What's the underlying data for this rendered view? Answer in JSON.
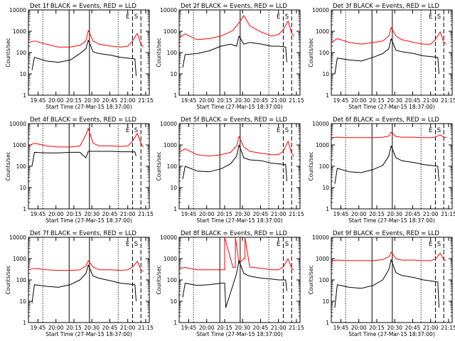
{
  "figure": {
    "ylabel": "Counts/sec",
    "xlabel": "Start Time (27-Mar-15 18:37:00)",
    "x_ticks": [
      "19:45",
      "20:00",
      "20:15",
      "20:30",
      "20:45",
      "21:00",
      "21:15"
    ],
    "x_ticks_row1": [
      "19:45",
      "20:00",
      "20:15",
      "20:30",
      "20:45",
      "21:00",
      "21:15"
    ],
    "y_ticks": [
      "1",
      "10",
      "100",
      "1000",
      "10000"
    ],
    "marker_labels": [
      "E",
      "S"
    ],
    "colors": {
      "events": "#000000",
      "lld": "#ff0000",
      "axes": "#000000",
      "background": "#ffffff"
    }
  },
  "chart_data": [
    {
      "type": "line",
      "title": "Det 1f BLACK = Events, RED = LLD",
      "xlabel": "Start Time (27-Mar-15 18:37:00)",
      "ylabel": "Counts/sec",
      "x_range": [
        "19:37",
        "21:18"
      ],
      "yscale": "log",
      "ylim": [
        1,
        10000
      ],
      "solid_lines": [
        "20:11",
        "20:28"
      ],
      "dotted_lines": [
        "19:49",
        "20:52"
      ],
      "dashed_lines": [
        "21:04",
        "21:11"
      ],
      "series": [
        {
          "color": "#ff0000",
          "x": [
            "19:37",
            "19:42",
            "19:52",
            "20:02",
            "20:12",
            "20:20",
            "20:25",
            "20:27",
            "20:31",
            "20:36",
            "20:46",
            "20:54",
            "21:00",
            "21:04",
            "21:08",
            "21:11",
            "21:13"
          ],
          "y": [
            300,
            350,
            250,
            180,
            180,
            220,
            350,
            1100,
            350,
            250,
            200,
            180,
            200,
            350,
            800,
            250,
            180
          ]
        },
        {
          "color": "#000000",
          "x": [
            "19:40",
            "19:42",
            "19:52",
            "20:02",
            "20:12",
            "20:20",
            "20:25",
            "20:27",
            "20:31",
            "20:36",
            "20:46",
            "20:54",
            "21:00",
            "21:06",
            "21:07"
          ],
          "y": [
            15,
            60,
            40,
            35,
            45,
            90,
            150,
            380,
            110,
            90,
            75,
            60,
            55,
            50,
            8
          ]
        }
      ]
    },
    {
      "type": "line",
      "title": "Det 2f BLACK = Events, RED = LLD",
      "xlabel": "Start Time (27-Mar-15 18:37:00)",
      "ylabel": "Counts/sec",
      "x_range": [
        "19:37",
        "21:18"
      ],
      "yscale": "log",
      "ylim": [
        1,
        10000
      ],
      "solid_lines": [
        "20:11",
        "20:28"
      ],
      "dotted_lines": [
        "19:49",
        "20:52"
      ],
      "dashed_lines": [
        "21:04",
        "21:11"
      ],
      "series": [
        {
          "color": "#ff0000",
          "x": [
            "19:37",
            "19:42",
            "19:52",
            "20:02",
            "20:12",
            "20:17",
            "20:22",
            "20:27",
            "20:31",
            "20:36",
            "20:46",
            "20:54",
            "21:00",
            "21:04",
            "21:08",
            "21:11",
            "21:13"
          ],
          "y": [
            500,
            750,
            400,
            450,
            600,
            800,
            1100,
            2500,
            5500,
            1800,
            900,
            600,
            700,
            1200,
            3000,
            800,
            600
          ]
        },
        {
          "color": "#000000",
          "x": [
            "19:40",
            "19:42",
            "19:52",
            "20:02",
            "20:12",
            "20:20",
            "20:25",
            "20:27",
            "20:31",
            "20:36",
            "20:46",
            "20:54",
            "21:00",
            "21:06",
            "21:07"
          ],
          "y": [
            20,
            80,
            90,
            120,
            200,
            250,
            200,
            600,
            250,
            300,
            250,
            200,
            200,
            180,
            35
          ]
        }
      ]
    },
    {
      "type": "line",
      "title": "Det 3f BLACK = Events, RED = LLD",
      "xlabel": "Start Time (27-Mar-15 18:37:00)",
      "ylabel": "Counts/sec",
      "x_range": [
        "19:37",
        "21:18"
      ],
      "yscale": "log",
      "ylim": [
        1,
        10000
      ],
      "solid_lines": [
        "20:11",
        "20:28"
      ],
      "dotted_lines": [
        "19:49",
        "20:52"
      ],
      "dashed_lines": [
        "21:04",
        "21:11"
      ],
      "series": [
        {
          "color": "#ff0000",
          "x": [
            "19:37",
            "19:42",
            "19:52",
            "20:02",
            "20:12",
            "20:20",
            "20:25",
            "20:27",
            "20:31",
            "20:36",
            "20:46",
            "20:54",
            "21:00",
            "21:04",
            "21:08",
            "21:11",
            "21:13"
          ],
          "y": [
            300,
            450,
            300,
            250,
            300,
            350,
            600,
            1500,
            600,
            400,
            300,
            250,
            250,
            400,
            950,
            300,
            250
          ]
        },
        {
          "color": "#000000",
          "x": [
            "19:40",
            "19:42",
            "19:52",
            "20:02",
            "20:12",
            "20:20",
            "20:25",
            "20:27",
            "20:31",
            "20:36",
            "20:46",
            "20:54",
            "21:00",
            "21:06",
            "21:07"
          ],
          "y": [
            10,
            55,
            45,
            40,
            60,
            90,
            150,
            450,
            130,
            110,
            90,
            70,
            65,
            60,
            10
          ]
        }
      ]
    },
    {
      "type": "line",
      "title": "Det 4f BLACK = Events, RED = LLD",
      "xlabel": "Start Time (27-Mar-15 18:37:00)",
      "ylabel": "Counts/sec",
      "x_range": [
        "19:37",
        "21:18"
      ],
      "yscale": "log",
      "ylim": [
        1,
        10000
      ],
      "solid_lines": [
        "20:11",
        "20:28"
      ],
      "dotted_lines": [
        "19:49",
        "20:52"
      ],
      "dashed_lines": [
        "21:04",
        "21:11"
      ],
      "series": [
        {
          "color": "#ff0000",
          "x": [
            "19:37",
            "19:42",
            "19:52",
            "20:02",
            "20:12",
            "20:20",
            "20:25",
            "20:27",
            "20:31",
            "20:36",
            "20:46",
            "20:54",
            "21:00",
            "21:04",
            "21:08",
            "21:11",
            "21:13"
          ],
          "y": [
            900,
            1200,
            900,
            800,
            800,
            900,
            3000,
            6000,
            1200,
            900,
            900,
            850,
            900,
            1500,
            3500,
            1200,
            800
          ]
        },
        {
          "color": "#000000",
          "x": [
            "19:40",
            "19:42",
            "19:52",
            "20:02",
            "20:12",
            "20:20",
            "20:25",
            "20:27",
            "20:31",
            "20:36",
            "20:46",
            "20:54",
            "21:00",
            "21:06",
            "21:07"
          ],
          "y": [
            100,
            450,
            420,
            420,
            450,
            450,
            250,
            500,
            500,
            500,
            500,
            480,
            480,
            470,
            300
          ]
        }
      ]
    },
    {
      "type": "line",
      "title": "Det 5f BLACK = Events, RED = LLD",
      "xlabel": "Start Time (27-Mar-15 18:37:00)",
      "ylabel": "Counts/sec",
      "x_range": [
        "19:37",
        "21:18"
      ],
      "yscale": "log",
      "ylim": [
        1,
        10000
      ],
      "solid_lines": [
        "20:11",
        "20:28"
      ],
      "dotted_lines": [
        "19:49",
        "20:52"
      ],
      "dashed_lines": [
        "21:04",
        "21:11"
      ],
      "series": [
        {
          "color": "#ff0000",
          "x": [
            "19:37",
            "19:42",
            "19:52",
            "20:02",
            "20:12",
            "20:20",
            "20:25",
            "20:27",
            "20:31",
            "20:36",
            "20:46",
            "20:54",
            "21:00",
            "21:04",
            "21:08",
            "21:11",
            "21:13"
          ],
          "y": [
            450,
            650,
            350,
            300,
            350,
            450,
            900,
            2500,
            800,
            500,
            400,
            350,
            350,
            500,
            1500,
            400,
            300
          ]
        },
        {
          "color": "#000000",
          "x": [
            "19:40",
            "19:42",
            "19:52",
            "20:02",
            "20:12",
            "20:20",
            "20:25",
            "20:27",
            "20:31",
            "20:36",
            "20:46",
            "20:54",
            "21:00",
            "21:06",
            "21:07"
          ],
          "y": [
            25,
            100,
            60,
            55,
            75,
            130,
            300,
            1000,
            250,
            200,
            180,
            140,
            130,
            120,
            20
          ]
        }
      ]
    },
    {
      "type": "line",
      "title": "Det 6f BLACK = Events, RED = LLD",
      "xlabel": "Start Time (27-Mar-15 18:37:00)",
      "ylabel": "Counts/sec",
      "x_range": [
        "19:37",
        "21:18"
      ],
      "yscale": "log",
      "ylim": [
        1,
        10000
      ],
      "solid_lines": [
        "20:11",
        "20:28"
      ],
      "dotted_lines": [
        "19:49",
        "20:52"
      ],
      "dashed_lines": [
        "21:04",
        "21:11"
      ],
      "series": [
        {
          "color": "#ff0000",
          "x": [
            "19:37",
            "19:42",
            "19:52",
            "20:02",
            "20:12",
            "20:20",
            "20:25",
            "20:27",
            "20:31",
            "20:36",
            "20:46",
            "20:54",
            "21:00",
            "21:04",
            "21:08",
            "21:11",
            "21:13"
          ],
          "y": [
            2200,
            2300,
            2200,
            2200,
            2200,
            2300,
            2600,
            4000,
            2500,
            2300,
            2300,
            2200,
            2200,
            2300,
            3000,
            2300,
            2200
          ]
        },
        {
          "color": "#000000",
          "x": [
            "19:40",
            "19:42",
            "19:52",
            "20:02",
            "20:12",
            "20:20",
            "20:25",
            "20:27",
            "20:31",
            "20:36",
            "20:46",
            "20:54",
            "21:00",
            "21:06",
            "21:07"
          ],
          "y": [
            15,
            80,
            55,
            50,
            70,
            110,
            300,
            900,
            250,
            180,
            150,
            120,
            110,
            100,
            20
          ]
        }
      ]
    },
    {
      "type": "line",
      "title": "Det 7f BLACK = Events, RED = LLD",
      "xlabel": "Start Time (27-Mar-15 18:37:00)",
      "ylabel": "Counts/sec",
      "x_range": [
        "19:37",
        "21:18"
      ],
      "yscale": "log",
      "ylim": [
        1,
        10000
      ],
      "solid_lines": [
        "20:11",
        "20:28"
      ],
      "dotted_lines": [
        "19:49",
        "20:52"
      ],
      "dashed_lines": [
        "21:04",
        "21:11"
      ],
      "series": [
        {
          "color": "#ff0000",
          "x": [
            "19:37",
            "19:42",
            "19:52",
            "20:02",
            "20:12",
            "20:20",
            "20:25",
            "20:27",
            "20:31",
            "20:36",
            "20:46",
            "20:54",
            "21:00",
            "21:04",
            "21:08",
            "21:11",
            "21:13"
          ],
          "y": [
            300,
            350,
            300,
            280,
            280,
            300,
            450,
            800,
            400,
            300,
            300,
            280,
            300,
            400,
            750,
            300,
            250
          ]
        },
        {
          "color": "#000000",
          "x": [
            "19:40",
            "19:42",
            "19:52",
            "20:02",
            "20:12",
            "20:20",
            "20:25",
            "20:27",
            "20:31",
            "20:36",
            "20:46",
            "20:54",
            "21:00",
            "21:06",
            "21:07"
          ],
          "y": [
            8,
            60,
            50,
            45,
            60,
            100,
            200,
            500,
            150,
            120,
            90,
            70,
            65,
            60,
            10
          ]
        }
      ]
    },
    {
      "type": "line",
      "title": "Det 8f BLACK = Events, RED = LLD",
      "xlabel": "Start Time (27-Mar-15 18:37:00)",
      "ylabel": "Counts/sec",
      "x_range": [
        "19:37",
        "21:18"
      ],
      "yscale": "log",
      "ylim": [
        1,
        10000
      ],
      "solid_lines": [
        "20:11",
        "20:28"
      ],
      "dotted_lines": [
        "19:49",
        "20:52"
      ],
      "dashed_lines": [
        "21:04",
        "21:11"
      ],
      "series": [
        {
          "color": "#ff0000",
          "x": [
            "19:37",
            "19:42",
            "19:52",
            "20:02",
            "20:12",
            "20:15",
            "20:15",
            "20:22",
            "20:24",
            "20:24",
            "20:27",
            "20:31",
            "20:32",
            "20:32",
            "20:36",
            "20:46",
            "20:54",
            "21:00",
            "21:04",
            "21:08",
            "21:11",
            "21:13"
          ],
          "y": [
            350,
            380,
            300,
            300,
            300,
            300,
            10000,
            380,
            380,
            10000,
            600,
            1000,
            1000,
            10000,
            400,
            350,
            300,
            300,
            400,
            1000,
            350,
            300
          ]
        },
        {
          "color": "#000000",
          "x": [
            "19:40",
            "19:42",
            "19:52",
            "20:02",
            "20:12",
            "20:15",
            "20:16",
            "20:25",
            "20:27",
            "20:31",
            "20:36",
            "20:46",
            "20:54",
            "21:00",
            "21:06",
            "21:07"
          ],
          "y": [
            15,
            70,
            55,
            60,
            70,
            70,
            5,
            200,
            800,
            200,
            150,
            120,
            110,
            100,
            100,
            30
          ]
        }
      ]
    },
    {
      "type": "line",
      "title": "Det 9f BLACK = Events, RED = LLD",
      "xlabel": "Start Time (27-Mar-15 18:37:00)",
      "ylabel": "Counts/sec",
      "x_range": [
        "19:37",
        "21:18"
      ],
      "yscale": "log",
      "ylim": [
        1,
        10000
      ],
      "solid_lines": [
        "20:11",
        "20:28"
      ],
      "dotted_lines": [
        "19:49",
        "20:52"
      ],
      "dashed_lines": [
        "21:04",
        "21:11"
      ],
      "series": [
        {
          "color": "#ff0000",
          "x": [
            "19:37",
            "19:42",
            "19:52",
            "20:02",
            "20:12",
            "20:20",
            "20:25",
            "20:27",
            "20:31",
            "20:36",
            "20:46",
            "20:54",
            "21:00",
            "21:04",
            "21:08",
            "21:11",
            "21:13"
          ],
          "y": [
            800,
            850,
            800,
            800,
            800,
            900,
            1200,
            2000,
            1000,
            850,
            850,
            800,
            800,
            950,
            1800,
            900,
            800
          ]
        },
        {
          "color": "#000000",
          "x": [
            "19:40",
            "19:42",
            "19:52",
            "20:02",
            "20:12",
            "20:20",
            "20:25",
            "20:27",
            "20:31",
            "20:36",
            "20:46",
            "20:54",
            "21:00",
            "21:06",
            "21:07"
          ],
          "y": [
            5,
            60,
            45,
            40,
            55,
            100,
            300,
            900,
            220,
            160,
            130,
            100,
            90,
            80,
            5
          ]
        }
      ]
    }
  ]
}
